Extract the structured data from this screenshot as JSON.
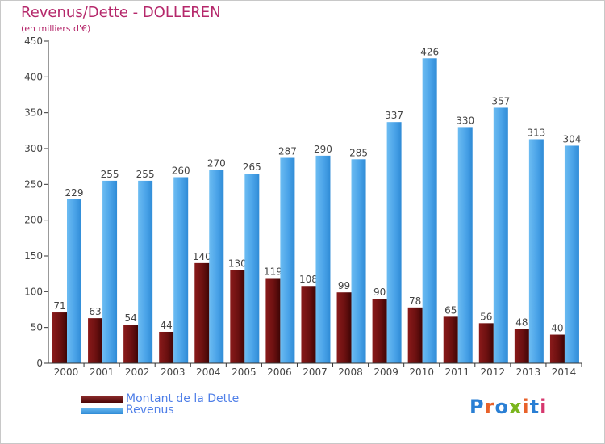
{
  "title": "Revenus/Dette - DOLLEREN",
  "subtitle": "(en milliers d'€)",
  "logo": {
    "text": "Proxiti",
    "colors": [
      "#2a7fd4",
      "#e8622a",
      "#2a7fd4",
      "#7ab51d",
      "#e8622a",
      "#2a7fd4",
      "#d6386e"
    ]
  },
  "chart_data": {
    "type": "bar",
    "categories": [
      "2000",
      "2001",
      "2002",
      "2003",
      "2004",
      "2005",
      "2006",
      "2007",
      "2008",
      "2009",
      "2010",
      "2011",
      "2012",
      "2013",
      "2014"
    ],
    "series": [
      {
        "name": "Montant de la Dette",
        "color": "#6b1010",
        "values": [
          71,
          63,
          54,
          44,
          140,
          130,
          119,
          108,
          99,
          90,
          78,
          65,
          56,
          48,
          40
        ]
      },
      {
        "name": "Revenus",
        "color": "#4aa3e8",
        "values": [
          229,
          255,
          255,
          260,
          270,
          265,
          287,
          290,
          285,
          337,
          426,
          330,
          357,
          313,
          304
        ]
      }
    ],
    "ylim": [
      0,
      450
    ],
    "yticks": [
      0,
      50,
      100,
      150,
      200,
      250,
      300,
      350,
      400,
      450
    ],
    "grid": false,
    "legend": "bottom-left"
  }
}
